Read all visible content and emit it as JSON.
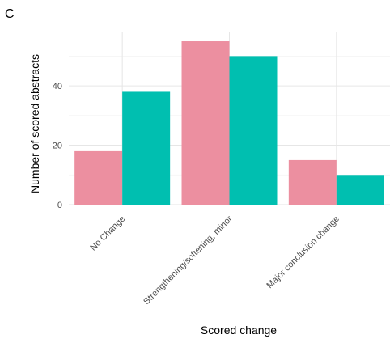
{
  "panel_label": "C",
  "chart_data": {
    "type": "bar",
    "categories": [
      "No Change",
      "Strengthening/softening, minor",
      "Major conclusion change"
    ],
    "series": [
      {
        "values": [
          18,
          55,
          15
        ],
        "color": "#ec8fa0"
      },
      {
        "values": [
          38,
          50,
          10
        ],
        "color": "#00bfb0"
      }
    ],
    "xlabel": "Scored change",
    "ylabel": "Number of scored abstracts",
    "yticks": [
      0,
      20,
      40
    ],
    "ylim": [
      0,
      58
    ],
    "grid": true,
    "legend": "none"
  }
}
